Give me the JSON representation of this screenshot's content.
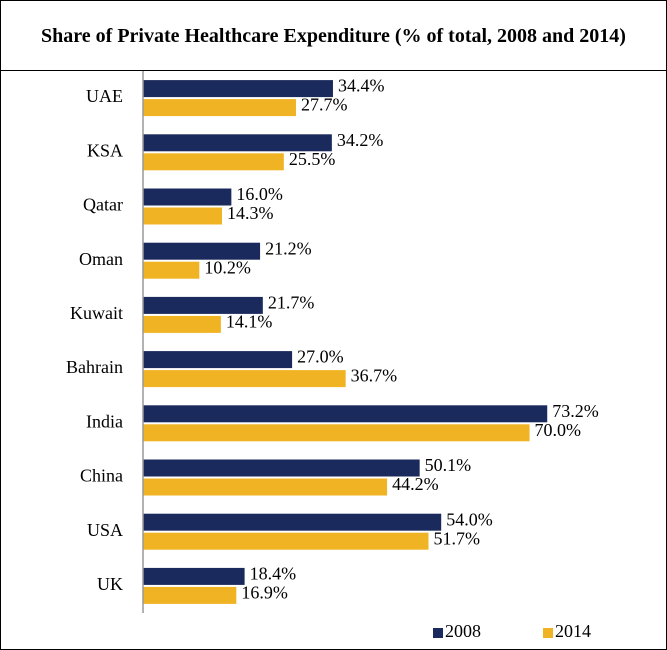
{
  "chart_data": {
    "type": "hbar",
    "title": "Share of Private Healthcare Expenditure (% of total, 2008 and 2014)",
    "categories": [
      "UAE",
      "KSA",
      "Qatar",
      "Oman",
      "Kuwait",
      "Bahrain",
      "India",
      "China",
      "USA",
      "UK"
    ],
    "series": [
      {
        "name": "2008",
        "color": "#1b2a5c",
        "values": [
          34.4,
          34.2,
          16.0,
          21.2,
          21.7,
          27.0,
          73.2,
          50.1,
          54.0,
          18.4
        ],
        "value_labels": [
          "34.4%",
          "34.2%",
          "16.0%",
          "21.2%",
          "21.7%",
          "27.0%",
          "73.2%",
          "50.1%",
          "54.0%",
          "18.4%"
        ]
      },
      {
        "name": "2014",
        "color": "#f0b323",
        "values": [
          27.7,
          25.5,
          14.3,
          10.2,
          14.1,
          36.7,
          70.0,
          44.2,
          51.7,
          16.9
        ],
        "value_labels": [
          "27.7%",
          "25.5%",
          "14.3%",
          "10.2%",
          "14.1%",
          "36.7%",
          "70.0%",
          "44.2%",
          "51.7%",
          "16.9%"
        ]
      }
    ],
    "xlim": [
      0,
      90
    ],
    "legend": "bottom-right"
  }
}
